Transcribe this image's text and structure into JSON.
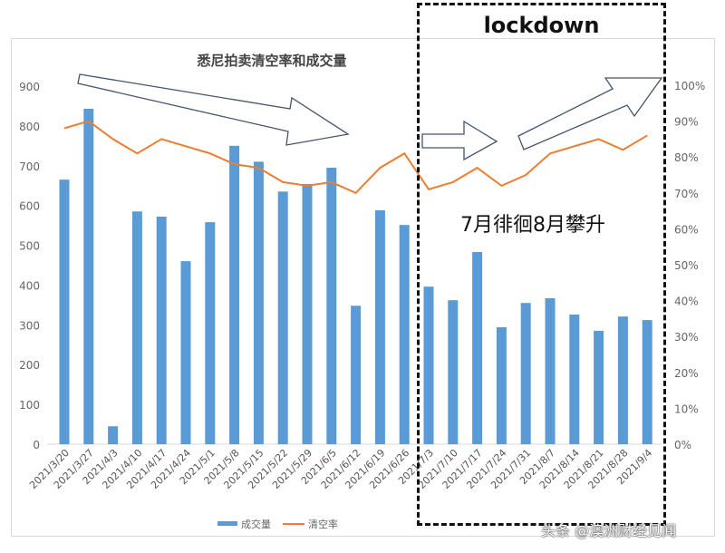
{
  "chart_data": {
    "type": "bar+line",
    "title": "悉尼拍卖清空率和成交量",
    "categories": [
      "2021/3/20",
      "2021/3/27",
      "2021/4/3",
      "2021/4/10",
      "2021/4/17",
      "2021/4/24",
      "2021/5/1",
      "2021/5/8",
      "2021/5/15",
      "2021/5/22",
      "2021/5/29",
      "2021/6/5",
      "2021/6/12",
      "2021/6/19",
      "2021/6/26",
      "2021/7/3",
      "2021/7/10",
      "2021/7/17",
      "2021/7/24",
      "2021/7/31",
      "2021/8/7",
      "2021/8/14",
      "2021/8/21",
      "2021/8/28",
      "2021/9/4"
    ],
    "series": [
      {
        "name": "成交量",
        "type": "bar",
        "axis": "left",
        "color": "#5b9bd5",
        "values": [
          665,
          843,
          45,
          585,
          572,
          460,
          558,
          750,
          710,
          635,
          654,
          695,
          348,
          588,
          551,
          396,
          362,
          483,
          294,
          355,
          367,
          326,
          285,
          321,
          312
        ]
      },
      {
        "name": "清空率",
        "type": "line",
        "axis": "right",
        "color": "#ed7d31",
        "values": [
          88,
          90,
          85,
          81,
          85,
          83,
          81,
          78,
          77,
          73,
          72,
          73,
          70,
          77,
          81,
          71,
          73,
          77,
          72,
          75,
          81,
          83,
          85,
          82,
          86
        ]
      }
    ],
    "y_left": {
      "range": [
        0,
        900
      ],
      "ticks": [
        "0",
        "100",
        "200",
        "300",
        "400",
        "500",
        "600",
        "700",
        "800",
        "900"
      ]
    },
    "y_right": {
      "range": [
        0,
        100
      ],
      "ticks": [
        "0%",
        "10%",
        "20%",
        "30%",
        "40%",
        "50%",
        "60%",
        "70%",
        "80%",
        "90%",
        "100%"
      ]
    },
    "legend": "bottom",
    "grid": false
  },
  "annotations": {
    "lockdown": "lockdown",
    "note": "7月徘徊8月攀升"
  },
  "watermark": "头条 @澳洲财经见闻"
}
